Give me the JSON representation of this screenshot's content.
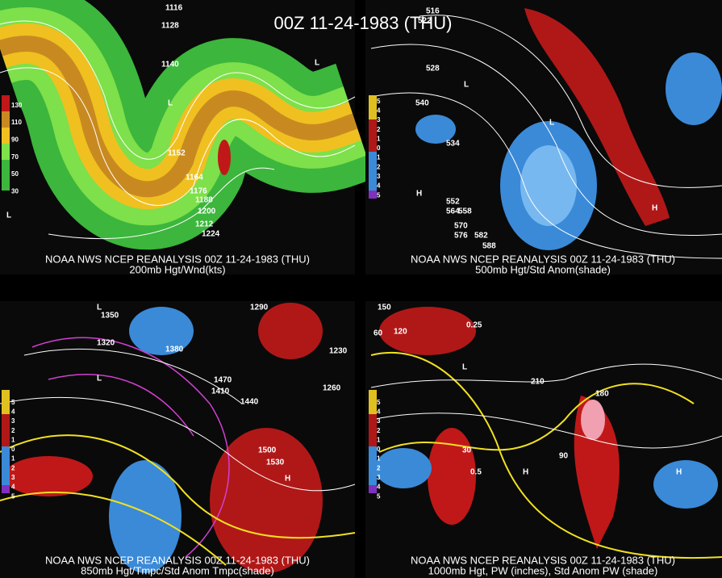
{
  "header": {
    "title": "00Z 11-24-1983 (THU)"
  },
  "panels": [
    {
      "caption": "NOAA NWS NCEP REANALYSIS 00Z 11-24-1983 (THU)",
      "subtitle": "200mb Hgt/Wnd(kts)",
      "legend": [
        "130",
        "110",
        "90",
        "70",
        "50",
        "30"
      ],
      "labels": [
        "1116",
        "1128",
        "1140",
        "1152",
        "1164",
        "1176",
        "1188",
        "1200",
        "1212",
        "1224",
        "L",
        "L",
        "L"
      ]
    },
    {
      "caption": "NOAA NWS NCEP REANALYSIS 00Z 11-24-1983 (THU)",
      "subtitle": "500mb Hgt/Std Anom(shade)",
      "legend": [
        "5",
        "4",
        "3",
        "2",
        "1",
        "0",
        "1",
        "2",
        "3",
        "4",
        "5"
      ],
      "labels": [
        "516",
        "522",
        "528",
        "534",
        "540",
        "552",
        "558",
        "564",
        "570",
        "576",
        "582",
        "588",
        "L",
        "L",
        "H",
        "H"
      ]
    },
    {
      "caption": "NOAA NWS NCEP REANALYSIS 00Z 11-24-1983 (THU)",
      "subtitle": "850mb Hgt/Tmpc/Std Anom Tmpc(shade)",
      "legend": [
        "5",
        "4",
        "3",
        "2",
        "1",
        "0",
        "1",
        "2",
        "3",
        "4",
        "5"
      ],
      "labels": [
        "1290",
        "1350",
        "1320",
        "1380",
        "1470",
        "1410",
        "1440",
        "1260",
        "1230",
        "1500",
        "1530",
        "H",
        "L",
        "L"
      ]
    },
    {
      "caption": "NOAA NWS NCEP REANALYSIS 00Z 11-24-1983 (THU)",
      "subtitle": "1000mb Hgt, PW (inches), Std Anom PW (shade)",
      "legend": [
        "5",
        "4",
        "3",
        "2",
        "1",
        "0",
        "1",
        "2",
        "3",
        "4",
        "5"
      ],
      "labels": [
        "150",
        "120",
        "60",
        "0.25",
        "0.5",
        "210",
        "180",
        "90",
        "30",
        "H",
        "H",
        "L"
      ]
    }
  ]
}
